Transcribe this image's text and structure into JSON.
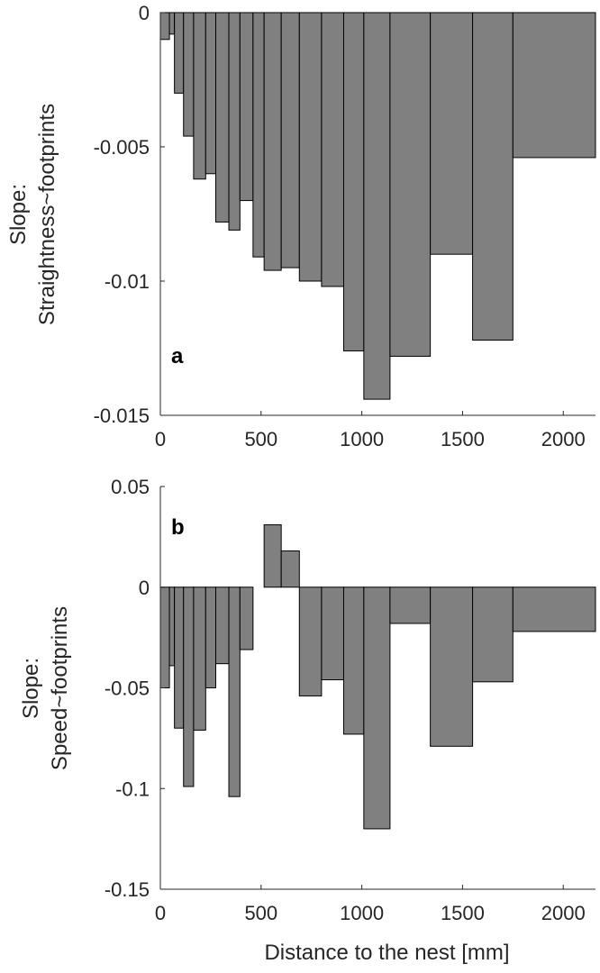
{
  "chart_data": [
    {
      "type": "bar",
      "panel_label": "a",
      "ylabel_lines": [
        "Slope:",
        "Straightness~footprints"
      ],
      "xlim": [
        0,
        2160
      ],
      "ylim": [
        -0.015,
        0
      ],
      "xticks": [
        0,
        500,
        1000,
        1500,
        2000
      ],
      "xtick_labels": [
        "0",
        "500",
        "1000",
        "1500",
        "2000"
      ],
      "yticks": [
        0,
        -0.005,
        -0.01,
        -0.015
      ],
      "ytick_labels": [
        "0",
        "-0.005",
        "-0.01",
        "-0.015"
      ],
      "grid": false,
      "bar_color": "#808080",
      "bars": [
        {
          "x0": 0,
          "x1": 45,
          "value": -0.001
        },
        {
          "x0": 45,
          "x1": 70,
          "value": -0.0008
        },
        {
          "x0": 70,
          "x1": 115,
          "value": -0.003
        },
        {
          "x0": 115,
          "x1": 165,
          "value": -0.0046
        },
        {
          "x0": 165,
          "x1": 225,
          "value": -0.0062
        },
        {
          "x0": 225,
          "x1": 275,
          "value": -0.006
        },
        {
          "x0": 275,
          "x1": 340,
          "value": -0.0078
        },
        {
          "x0": 340,
          "x1": 395,
          "value": -0.0081
        },
        {
          "x0": 395,
          "x1": 460,
          "value": -0.007
        },
        {
          "x0": 460,
          "x1": 515,
          "value": -0.0091
        },
        {
          "x0": 515,
          "x1": 600,
          "value": -0.0096
        },
        {
          "x0": 600,
          "x1": 690,
          "value": -0.0095
        },
        {
          "x0": 690,
          "x1": 800,
          "value": -0.01
        },
        {
          "x0": 800,
          "x1": 910,
          "value": -0.0102
        },
        {
          "x0": 910,
          "x1": 1010,
          "value": -0.0126
        },
        {
          "x0": 1010,
          "x1": 1140,
          "value": -0.0144
        },
        {
          "x0": 1140,
          "x1": 1340,
          "value": -0.0128
        },
        {
          "x0": 1340,
          "x1": 1550,
          "value": -0.009
        },
        {
          "x0": 1550,
          "x1": 1750,
          "value": -0.0122
        },
        {
          "x0": 1750,
          "x1": 2160,
          "value": -0.0054
        }
      ]
    },
    {
      "type": "bar",
      "panel_label": "b",
      "ylabel_lines": [
        "Slope:",
        "Speed~footprints"
      ],
      "xlabel": "Distance to the nest [mm]",
      "xlim": [
        0,
        2160
      ],
      "ylim": [
        -0.15,
        0.05
      ],
      "xticks": [
        0,
        500,
        1000,
        1500,
        2000
      ],
      "xtick_labels": [
        "0",
        "500",
        "1000",
        "1500",
        "2000"
      ],
      "yticks": [
        0.05,
        0,
        -0.05,
        -0.1,
        -0.15
      ],
      "ytick_labels": [
        "0.05",
        "0",
        "-0.05",
        "-0.1",
        "-0.15"
      ],
      "grid": false,
      "bar_color": "#808080",
      "bars": [
        {
          "x0": 0,
          "x1": 45,
          "value": -0.05
        },
        {
          "x0": 45,
          "x1": 70,
          "value": -0.039
        },
        {
          "x0": 70,
          "x1": 115,
          "value": -0.07
        },
        {
          "x0": 115,
          "x1": 165,
          "value": -0.099
        },
        {
          "x0": 165,
          "x1": 225,
          "value": -0.071
        },
        {
          "x0": 225,
          "x1": 275,
          "value": -0.05
        },
        {
          "x0": 275,
          "x1": 340,
          "value": -0.038
        },
        {
          "x0": 340,
          "x1": 395,
          "value": -0.104
        },
        {
          "x0": 395,
          "x1": 460,
          "value": -0.031
        },
        {
          "x0": 460,
          "x1": 515,
          "value": 0
        },
        {
          "x0": 515,
          "x1": 600,
          "value": 0.031
        },
        {
          "x0": 600,
          "x1": 690,
          "value": 0.018
        },
        {
          "x0": 690,
          "x1": 800,
          "value": -0.054
        },
        {
          "x0": 800,
          "x1": 910,
          "value": -0.046
        },
        {
          "x0": 910,
          "x1": 1010,
          "value": -0.073
        },
        {
          "x0": 1010,
          "x1": 1140,
          "value": -0.12
        },
        {
          "x0": 1140,
          "x1": 1340,
          "value": -0.018
        },
        {
          "x0": 1340,
          "x1": 1550,
          "value": -0.079
        },
        {
          "x0": 1550,
          "x1": 1750,
          "value": -0.047
        },
        {
          "x0": 1750,
          "x1": 2160,
          "value": -0.022
        }
      ]
    }
  ]
}
